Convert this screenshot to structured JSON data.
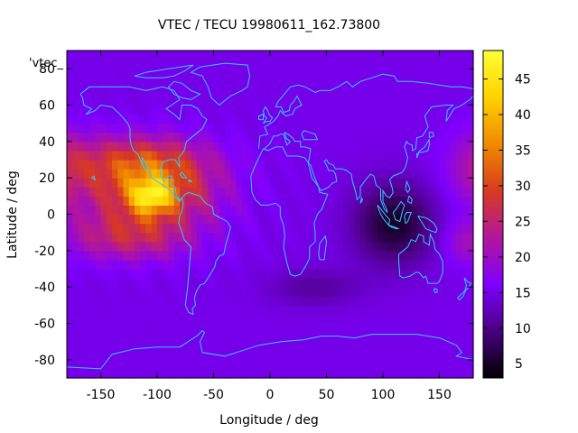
{
  "chart_data": {
    "type": "heatmap",
    "title": "VTEC / TECU 19980611_162.73800",
    "xlabel": "Longitude / deg",
    "ylabel": "Latitude / deg",
    "key_label": "'vtec_",
    "xlim": [
      -180,
      180
    ],
    "ylim": [
      -90,
      90
    ],
    "xticks": [
      -150,
      -100,
      -50,
      0,
      50,
      100,
      150
    ],
    "yticks": [
      -80,
      -60,
      -40,
      -20,
      0,
      20,
      40,
      60,
      80
    ],
    "colorbar": {
      "range": [
        3,
        49
      ],
      "ticks": [
        5,
        10,
        15,
        20,
        25,
        30,
        35,
        40,
        45
      ],
      "palette": [
        "#000000",
        "#4a0080",
        "#7f00ff",
        "#b2169b",
        "#d83a20",
        "#f08a00",
        "#ffd200",
        "#ffff33"
      ]
    },
    "grid": false,
    "overlay": "coastlines",
    "grid_resolution_deg": {
      "lon": 5,
      "lat": 5
    },
    "vtec_model": {
      "background": 15,
      "description_features": [
        {
          "feature": "equatorial anomaly American sector",
          "lon": -105,
          "lat": 10,
          "peak": 47
        },
        {
          "feature": "northern crest",
          "lon": -115,
          "lat": 30,
          "peak": 33
        },
        {
          "feature": "southern crest",
          "lon": -120,
          "lat": -15,
          "peak": 32
        },
        {
          "feature": "depletion",
          "lon": 110,
          "lat": -5,
          "min": 4
        }
      ]
    }
  }
}
